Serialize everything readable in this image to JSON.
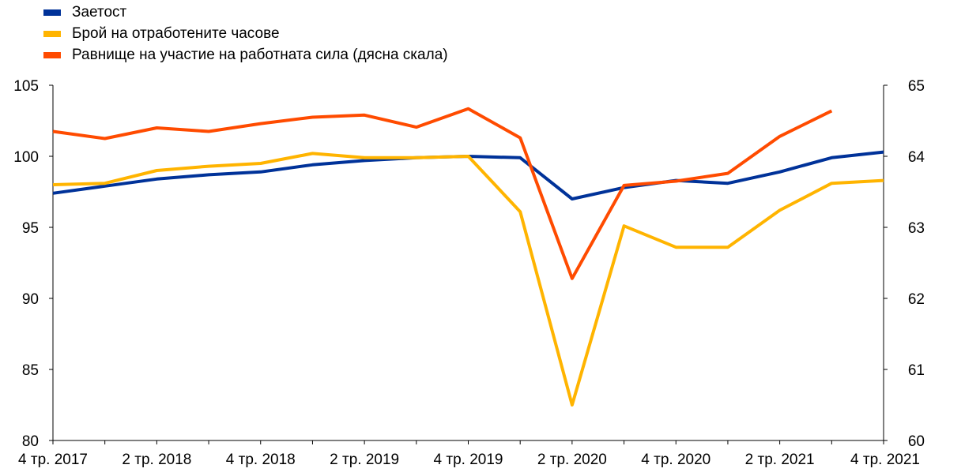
{
  "chart_data": {
    "type": "line",
    "title": "",
    "xlabel": "",
    "ylabel": "",
    "x": [
      "4 тр. 2017",
      "1 тр. 2018",
      "2 тр. 2018",
      "3 тр. 2018",
      "4 тр. 2018",
      "1 тр. 2019",
      "2 тр. 2019",
      "3 тр. 2019",
      "4 тр. 2019",
      "1 тр. 2020",
      "2 тр. 2020",
      "3 тр. 2020",
      "4 тр. 2020",
      "1 тр. 2021",
      "2 тр. 2021",
      "3 тр. 2021",
      "4 тр. 2021"
    ],
    "x_tick_labels": [
      "4 тр. 2017",
      "2 тр. 2018",
      "4 тр. 2018",
      "2 тр. 2019",
      "4 тр. 2019",
      "2 тр. 2020",
      "4 тр. 2020",
      "2 тр. 2021",
      "4 тр. 2021"
    ],
    "ylim_left": [
      80,
      105
    ],
    "y_ticks_left": [
      "80",
      "85",
      "90",
      "95",
      "100",
      "105"
    ],
    "ylim_right": [
      60,
      65
    ],
    "y_ticks_right": [
      "60",
      "61",
      "62",
      "63",
      "64",
      "65"
    ],
    "grid": false,
    "legend_position": "top-left",
    "series": [
      {
        "name": "Заетост",
        "axis": "left",
        "color": "#003299",
        "values": [
          97.4,
          97.9,
          98.4,
          98.7,
          98.9,
          99.4,
          99.7,
          99.9,
          100.0,
          99.9,
          97.0,
          97.8,
          98.3,
          98.1,
          98.9,
          99.9,
          100.3
        ]
      },
      {
        "name": "Брой на отработените часове",
        "axis": "left",
        "color": "#FFB400",
        "values": [
          98.0,
          98.1,
          99.0,
          99.3,
          99.5,
          100.2,
          99.9,
          99.9,
          100.0,
          96.1,
          82.5,
          95.1,
          93.6,
          93.6,
          96.2,
          98.1,
          98.3
        ]
      },
      {
        "name": "Равнище на участие на работната сила (дясна скала)",
        "axis": "right",
        "color": "#FF4B00",
        "values": [
          64.35,
          64.25,
          64.4,
          64.35,
          64.46,
          64.55,
          64.58,
          64.41,
          64.67,
          64.26,
          62.28,
          63.59,
          63.65,
          63.76,
          64.28,
          64.64,
          null
        ]
      }
    ]
  }
}
